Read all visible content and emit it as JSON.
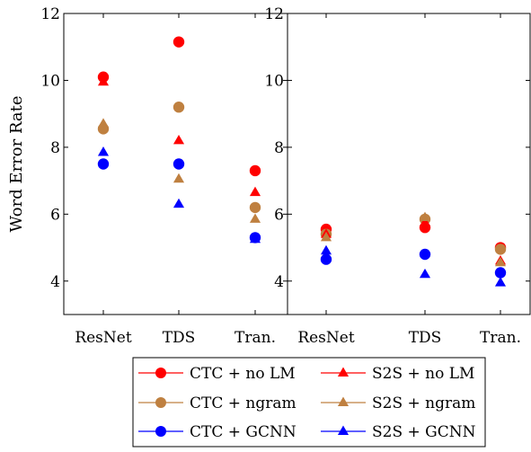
{
  "chart_data": [
    {
      "type": "scatter",
      "title": "",
      "xlabel": "",
      "ylabel": "Word Error Rate",
      "categories": [
        "ResNet",
        "TDS",
        "Tran."
      ],
      "ylim": [
        3,
        12
      ],
      "yticks": [
        4,
        6,
        8,
        10,
        12
      ],
      "grid": false,
      "series": [
        {
          "name": "CTC + no LM",
          "marker": "circle",
          "color": "#ff0000",
          "values": [
            10.1,
            11.15,
            7.3
          ]
        },
        {
          "name": "S2S + no LM",
          "marker": "triangle",
          "color": "#ff0000",
          "values": [
            9.95,
            8.2,
            6.65
          ]
        },
        {
          "name": "CTC + ngram",
          "marker": "circle",
          "color": "#bf8040",
          "values": [
            8.55,
            9.2,
            6.2
          ]
        },
        {
          "name": "S2S + ngram",
          "marker": "triangle",
          "color": "#bf8040",
          "values": [
            8.7,
            7.05,
            5.85
          ]
        },
        {
          "name": "CTC + GCNN",
          "marker": "circle",
          "color": "#0000ff",
          "values": [
            7.5,
            7.5,
            5.3
          ]
        },
        {
          "name": "S2S + GCNN",
          "marker": "triangle",
          "color": "#0000ff",
          "values": [
            7.85,
            6.3,
            5.25
          ]
        }
      ]
    },
    {
      "type": "scatter",
      "title": "",
      "xlabel": "",
      "ylabel": "",
      "categories": [
        "ResNet",
        "TDS",
        "Tran."
      ],
      "ylim": [
        3,
        12
      ],
      "yticks": [
        4,
        6,
        8,
        10,
        12
      ],
      "grid": false,
      "series": [
        {
          "name": "CTC + no LM",
          "marker": "circle",
          "color": "#ff0000",
          "values": [
            5.55,
            5.6,
            5.0
          ]
        },
        {
          "name": "S2S + no LM",
          "marker": "triangle",
          "color": "#ff0000",
          "values": [
            5.4,
            5.75,
            4.6
          ]
        },
        {
          "name": "CTC + ngram",
          "marker": "circle",
          "color": "#bf8040",
          "values": [
            5.4,
            5.85,
            4.95
          ]
        },
        {
          "name": "S2S + ngram",
          "marker": "triangle",
          "color": "#bf8040",
          "values": [
            5.3,
            5.9,
            4.55
          ]
        },
        {
          "name": "CTC + GCNN",
          "marker": "circle",
          "color": "#0000ff",
          "values": [
            4.65,
            4.8,
            4.25
          ]
        },
        {
          "name": "S2S + GCNN",
          "marker": "triangle",
          "color": "#0000ff",
          "values": [
            4.9,
            4.2,
            3.95
          ]
        }
      ]
    }
  ],
  "legend": {
    "placement": "bottom",
    "entries": [
      {
        "label": "CTC + no LM",
        "marker": "circle",
        "color": "#ff0000"
      },
      {
        "label": "S2S + no LM",
        "marker": "triangle",
        "color": "#ff0000"
      },
      {
        "label": "CTC + ngram",
        "marker": "circle",
        "color": "#bf8040"
      },
      {
        "label": "S2S + ngram",
        "marker": "triangle",
        "color": "#bf8040"
      },
      {
        "label": "CTC + GCNN",
        "marker": "circle",
        "color": "#0000ff"
      },
      {
        "label": "S2S + GCNN",
        "marker": "triangle",
        "color": "#0000ff"
      }
    ]
  }
}
